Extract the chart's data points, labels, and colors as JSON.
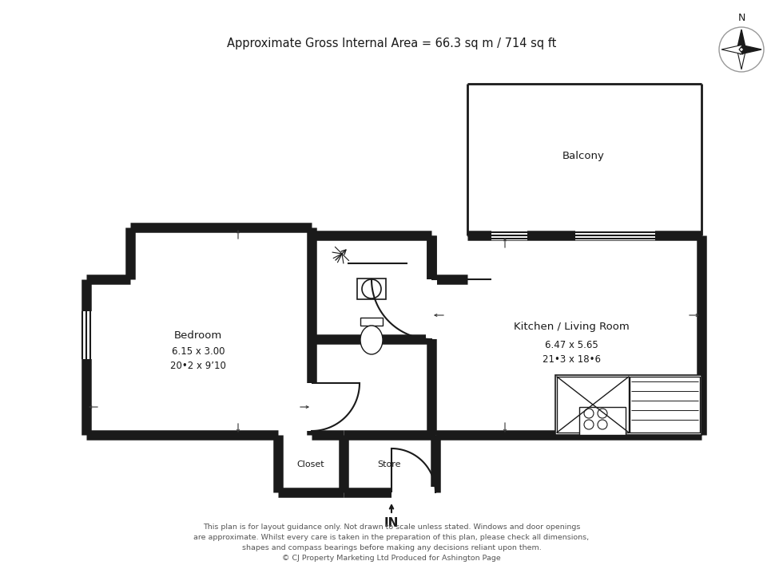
{
  "title": "Approximate Gross Internal Area = 66.3 sq m / 714 sq ft",
  "background_color": "#ffffff",
  "wall_color": "#1a1a1a",
  "rooms": {
    "bedroom": {
      "label": "Bedroom",
      "dim1": "6.15 x 3.00",
      "dim2": "20•2 x 9’10"
    },
    "kitchen": {
      "label": "Kitchen / Living Room",
      "dim1": "6.47 x 5.65",
      "dim2": "21•3 x 18•6"
    },
    "balcony": {
      "label": "Balcony"
    },
    "closet": {
      "label": "Closet"
    },
    "store": {
      "label": "Store"
    }
  },
  "in_label": "IN",
  "footer_lines": [
    "This plan is for layout guidance only. Not drawn to scale unless stated. Windows and door openings",
    "are approximate. Whilst every care is taken in the preparation of this plan, please check all dimensions,",
    "shapes and compass bearings before making any decisions reliant upon them.",
    "© CJ Property Marketing Ltd Produced for Ashington Page"
  ],
  "compass_label": "N"
}
